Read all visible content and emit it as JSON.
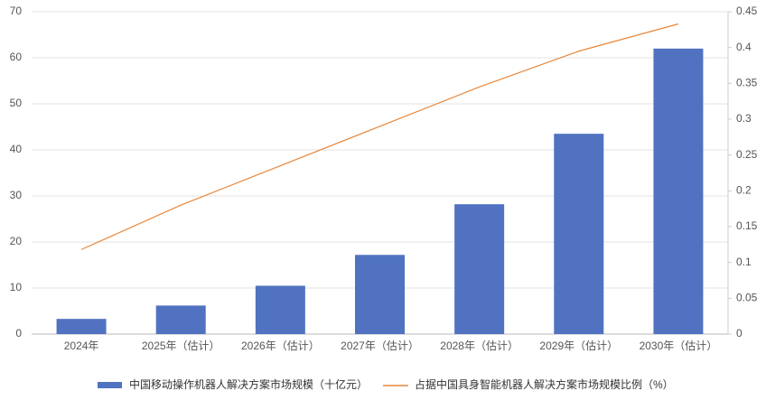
{
  "chart_data": {
    "type": "combo",
    "categories": [
      "2024年",
      "2025年（估计）",
      "2026年（估计）",
      "2027年（估计）",
      "2028年（估计）",
      "2029年（估计）",
      "2030年（估计）"
    ],
    "series": [
      {
        "name": "中国移动操作机器人解决方案市场规模（十亿元）",
        "type": "bar",
        "color": "#5172c1",
        "values": [
          3.3,
          6.2,
          10.5,
          17.2,
          28.2,
          43.5,
          62.0
        ]
      },
      {
        "name": "占据中国具身智能机器人解决方案市场规模比例（%）",
        "type": "line",
        "axis": "y2",
        "color": "#e8873a",
        "values": [
          0.118,
          0.18,
          0.235,
          0.29,
          0.345,
          0.395,
          0.433
        ]
      }
    ],
    "ylim": [
      0,
      70
    ],
    "yticks": [
      0,
      10,
      20,
      30,
      40,
      50,
      60,
      70
    ],
    "y2lim": [
      0,
      0.45
    ],
    "y2ticks": [
      0,
      0.05,
      0.1,
      0.15,
      0.2,
      0.25,
      0.3,
      0.35,
      0.4,
      0.45
    ],
    "grid": true
  }
}
